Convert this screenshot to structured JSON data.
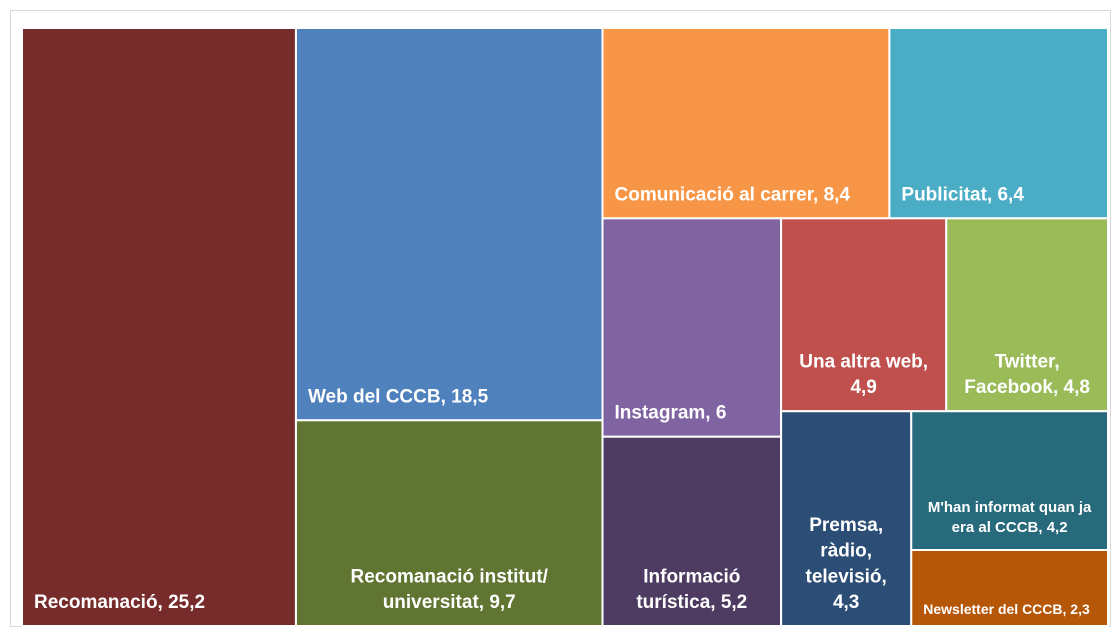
{
  "chart_data": {
    "type": "treemap",
    "labels": [
      "Recomanació, 25,2",
      "Web del CCCB, 18,5",
      "Recomanació institut/ universitat, 9,7",
      "Comunicació al carrer, 8,4",
      "Publicitat, 6,4",
      "Instagram, 6",
      "Informació turística, 5,2",
      "Una altra web, 4,9",
      "Twitter, Facebook, 4,8",
      "Premsa, ràdio, televisió, 4,3",
      "M'han informat quan ja era al CCCB, 4,2",
      "Newsletter del CCCB, 2,3"
    ],
    "values": [
      25.2,
      18.5,
      9.7,
      8.4,
      6.4,
      6,
      5.2,
      4.9,
      4.8,
      4.3,
      4.2,
      2.3
    ],
    "colors": [
      "#772B2B",
      "#4F81BD",
      "#617532",
      "#F79646",
      "#4BACC6",
      "#8064A2",
      "#4D3B62",
      "#C0504D",
      "#9BBB59",
      "#2C4D75",
      "#276A7C",
      "#B65708"
    ]
  }
}
